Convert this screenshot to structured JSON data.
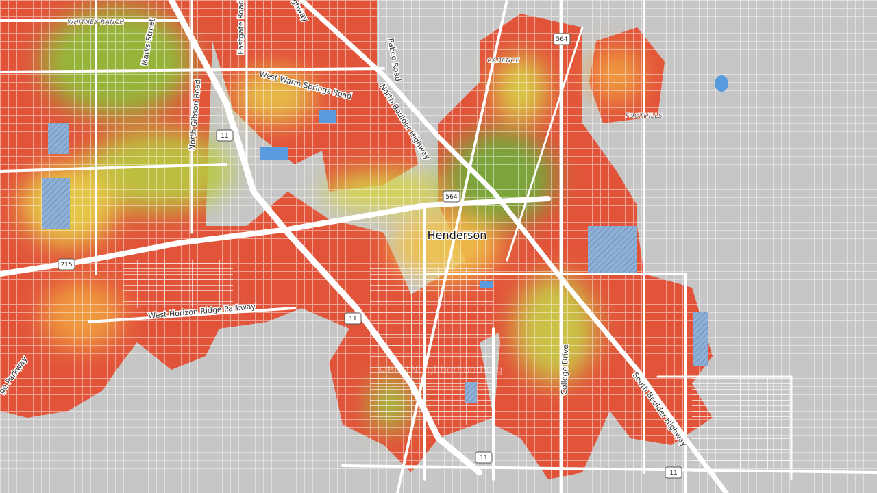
{
  "labels": [
    "WHITNEY RANCH",
    "Marks Street",
    "Eastgate Road",
    "Highway",
    "Pabco Road",
    "West Warm Springs Road",
    "North Boulder Highway",
    "North Gibson Road",
    "CADENCE",
    "FOOTHILLS",
    "Henderson",
    "West Horizon Ridge Parkway",
    "College Drive",
    "South Boulder Highway",
    "ge Parkway",
    "©BestNeighborhood.org"
  ],
  "shields": [
    "564",
    "564",
    "11",
    "215",
    "11",
    "11",
    "11"
  ]
}
